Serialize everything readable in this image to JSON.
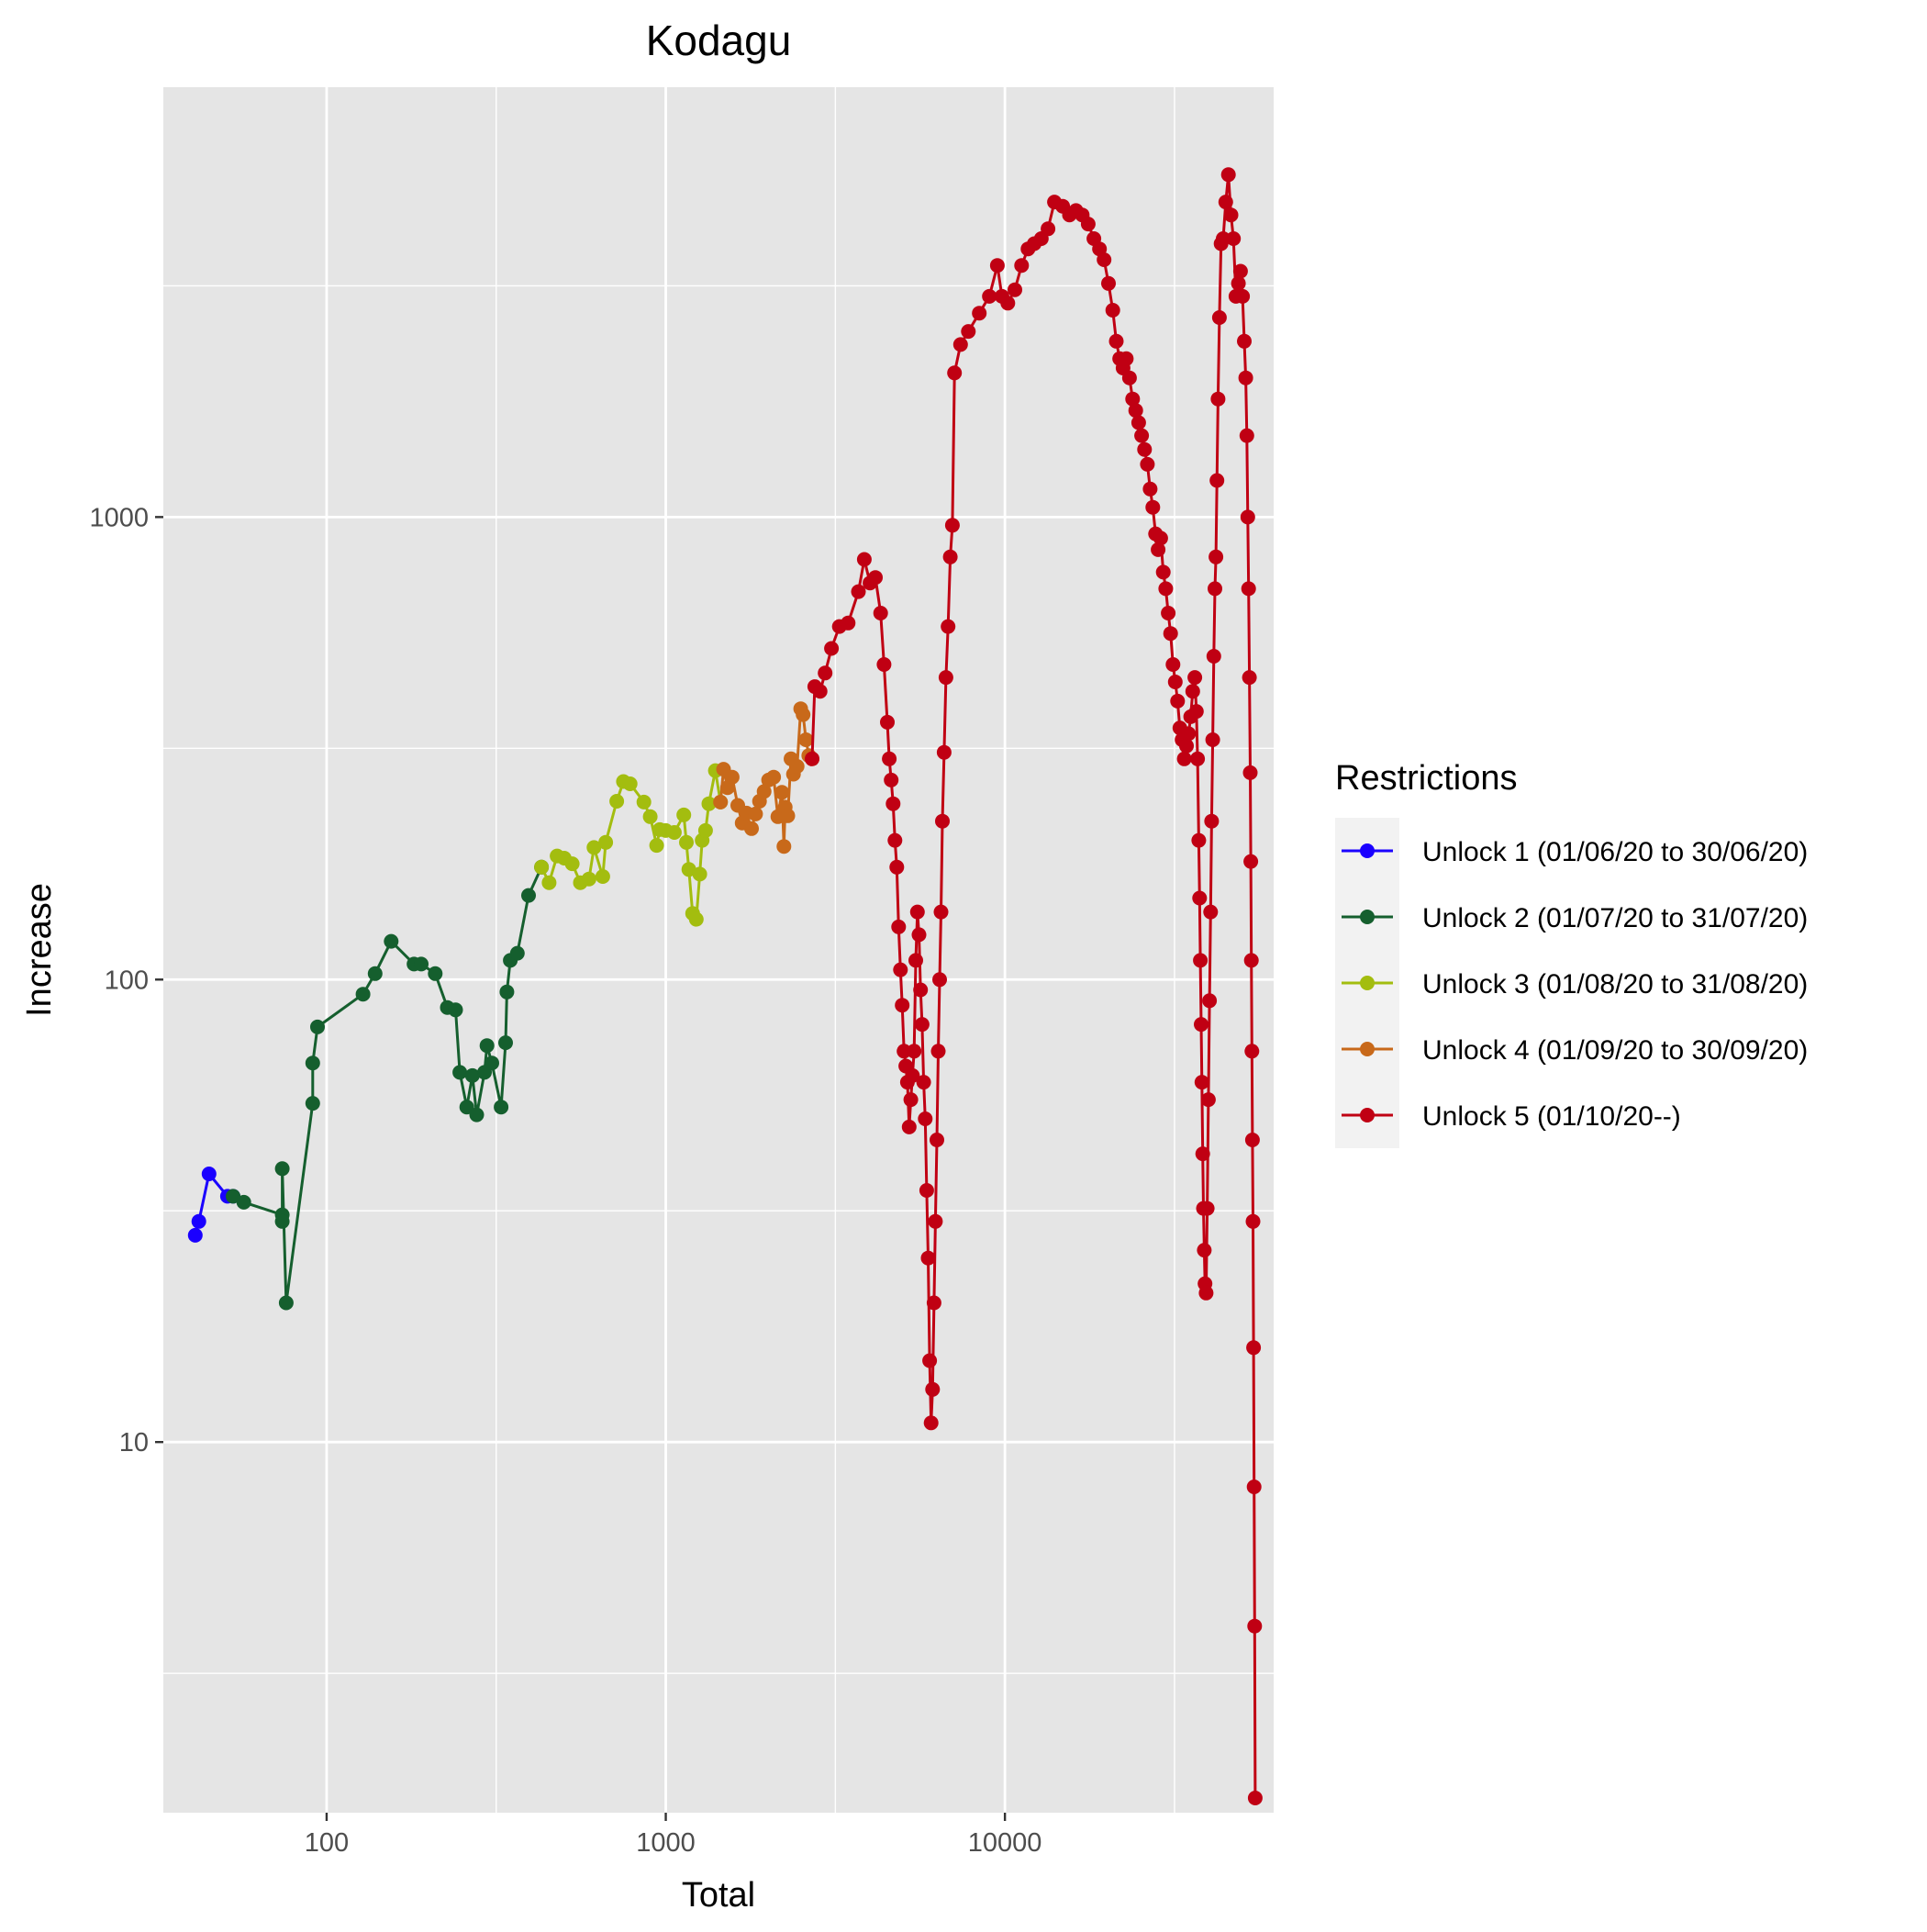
{
  "chart_data": {
    "type": "line",
    "title": "Kodagu",
    "xlabel": "Total",
    "ylabel": "Increase",
    "x_scale": "log10",
    "y_scale": "log10",
    "xlim": [
      33,
      62000
    ],
    "ylim": [
      1.58,
      8500
    ],
    "x_ticks": [
      100,
      1000,
      10000
    ],
    "x_tick_labels": [
      "100",
      "1000",
      "10000"
    ],
    "y_ticks": [
      10,
      100,
      1000
    ],
    "y_tick_labels": [
      "10",
      "100",
      "1000"
    ],
    "grid": true,
    "markers": true,
    "legend": {
      "title": "Restrictions",
      "position": "right"
    },
    "series": [
      {
        "name": "Unlock 1 (01/06/20 to 30/06/20)",
        "color": "#1a00ff",
        "points": [
          [
            41,
            28
          ],
          [
            42,
            30
          ],
          [
            45,
            38
          ],
          [
            51,
            34
          ],
          [
            53,
            34
          ]
        ]
      },
      {
        "name": "Unlock 2 (01/07/20 to 31/07/20)",
        "color": "#155f2e",
        "points": [
          [
            53,
            34
          ],
          [
            57,
            33
          ],
          [
            74,
            31
          ],
          [
            74,
            30
          ],
          [
            74,
            39
          ],
          [
            76,
            20
          ],
          [
            91,
            54
          ],
          [
            91,
            66
          ],
          [
            94,
            79
          ],
          [
            128,
            93
          ],
          [
            139,
            103
          ],
          [
            155,
            121
          ],
          [
            181,
            108
          ],
          [
            190,
            108
          ],
          [
            209,
            103
          ],
          [
            227,
            87
          ],
          [
            240,
            86
          ],
          [
            247,
            63
          ],
          [
            259,
            53
          ],
          [
            269,
            62
          ],
          [
            277,
            51
          ],
          [
            292,
            63
          ],
          [
            297,
            72
          ],
          [
            307,
            66
          ],
          [
            327,
            53
          ],
          [
            337,
            73
          ],
          [
            340,
            94
          ],
          [
            348,
            110
          ],
          [
            365,
            114
          ],
          [
            394,
            152
          ],
          [
            430,
            175
          ]
        ]
      },
      {
        "name": "Unlock 3 (01/08/20 to 31/08/20)",
        "color": "#a3bd0f",
        "points": [
          [
            430,
            175
          ],
          [
            453,
            162
          ],
          [
            478,
            185
          ],
          [
            502,
            183
          ],
          [
            530,
            178
          ],
          [
            560,
            162
          ],
          [
            594,
            165
          ],
          [
            614,
            193
          ],
          [
            652,
            167
          ],
          [
            665,
            198
          ],
          [
            717,
            243
          ],
          [
            750,
            268
          ],
          [
            785,
            265
          ],
          [
            862,
            242
          ],
          [
            900,
            225
          ],
          [
            940,
            195
          ],
          [
            960,
            211
          ],
          [
            1000,
            210
          ],
          [
            1060,
            208
          ],
          [
            1130,
            227
          ],
          [
            1150,
            198
          ],
          [
            1170,
            173
          ],
          [
            1200,
            139
          ],
          [
            1230,
            135
          ],
          [
            1260,
            169
          ],
          [
            1280,
            200
          ],
          [
            1310,
            210
          ],
          [
            1340,
            240
          ],
          [
            1400,
            283
          ],
          [
            1450,
            242
          ]
        ]
      },
      {
        "name": "Unlock 4 (01/09/20 to 30/09/20)",
        "color": "#c8691a",
        "points": [
          [
            1450,
            242
          ],
          [
            1480,
            285
          ],
          [
            1520,
            260
          ],
          [
            1570,
            274
          ],
          [
            1630,
            238
          ],
          [
            1680,
            218
          ],
          [
            1730,
            229
          ],
          [
            1790,
            212
          ],
          [
            1840,
            228
          ],
          [
            1890,
            243
          ],
          [
            1950,
            255
          ],
          [
            2010,
            270
          ],
          [
            2080,
            274
          ],
          [
            2140,
            225
          ],
          [
            2200,
            254
          ],
          [
            2230,
            194
          ],
          [
            2250,
            236
          ],
          [
            2290,
            226
          ],
          [
            2340,
            300
          ],
          [
            2380,
            278
          ],
          [
            2440,
            289
          ],
          [
            2500,
            385
          ],
          [
            2540,
            374
          ],
          [
            2590,
            330
          ],
          [
            2640,
            305
          ],
          [
            2700,
            300
          ]
        ]
      },
      {
        "name": "Unlock 5 (01/10/20--)",
        "color": "#c00013",
        "points": [
          [
            2700,
            300
          ],
          [
            2750,
            430
          ],
          [
            2850,
            420
          ],
          [
            2950,
            460
          ],
          [
            3080,
            520
          ],
          [
            3250,
            580
          ],
          [
            3450,
            590
          ],
          [
            3700,
            690
          ],
          [
            3850,
            810
          ],
          [
            4000,
            720
          ],
          [
            4150,
            740
          ],
          [
            4300,
            620
          ],
          [
            4400,
            480
          ],
          [
            4500,
            360
          ],
          [
            4560,
            300
          ],
          [
            4620,
            270
          ],
          [
            4680,
            240
          ],
          [
            4740,
            200
          ],
          [
            4800,
            175
          ],
          [
            4860,
            130
          ],
          [
            4920,
            105
          ],
          [
            4980,
            88
          ],
          [
            5040,
            70
          ],
          [
            5100,
            65
          ],
          [
            5160,
            60
          ],
          [
            5220,
            48
          ],
          [
            5280,
            55
          ],
          [
            5340,
            62
          ],
          [
            5400,
            70
          ],
          [
            5460,
            110
          ],
          [
            5520,
            140
          ],
          [
            5580,
            125
          ],
          [
            5640,
            95
          ],
          [
            5700,
            80
          ],
          [
            5760,
            60
          ],
          [
            5820,
            50
          ],
          [
            5880,
            35
          ],
          [
            5940,
            25
          ],
          [
            6000,
            15
          ],
          [
            6060,
            11
          ],
          [
            6120,
            13
          ],
          [
            6180,
            20
          ],
          [
            6240,
            30
          ],
          [
            6300,
            45
          ],
          [
            6360,
            70
          ],
          [
            6420,
            100
          ],
          [
            6480,
            140
          ],
          [
            6540,
            220
          ],
          [
            6620,
            310
          ],
          [
            6700,
            450
          ],
          [
            6800,
            580
          ],
          [
            6900,
            820
          ],
          [
            7000,
            960
          ],
          [
            7100,
            2050
          ],
          [
            7400,
            2360
          ],
          [
            7800,
            2520
          ],
          [
            8400,
            2760
          ],
          [
            9000,
            3000
          ],
          [
            9500,
            3500
          ],
          [
            9800,
            3000
          ],
          [
            10200,
            2900
          ],
          [
            10700,
            3100
          ],
          [
            11200,
            3500
          ],
          [
            11700,
            3800
          ],
          [
            12200,
            3900
          ],
          [
            12800,
            4000
          ],
          [
            13400,
            4200
          ],
          [
            14000,
            4800
          ],
          [
            14800,
            4700
          ],
          [
            15500,
            4500
          ],
          [
            16200,
            4600
          ],
          [
            16900,
            4500
          ],
          [
            17600,
            4300
          ],
          [
            18300,
            4000
          ],
          [
            19000,
            3800
          ],
          [
            19600,
            3600
          ],
          [
            20200,
            3200
          ],
          [
            20800,
            2800
          ],
          [
            21300,
            2400
          ],
          [
            21800,
            2200
          ],
          [
            22300,
            2100
          ],
          [
            22800,
            2200
          ],
          [
            23300,
            2000
          ],
          [
            23800,
            1800
          ],
          [
            24300,
            1700
          ],
          [
            24800,
            1600
          ],
          [
            25300,
            1500
          ],
          [
            25800,
            1400
          ],
          [
            26300,
            1300
          ],
          [
            26800,
            1150
          ],
          [
            27300,
            1050
          ],
          [
            27800,
            920
          ],
          [
            28300,
            850
          ],
          [
            28800,
            900
          ],
          [
            29300,
            760
          ],
          [
            29800,
            700
          ],
          [
            30300,
            620
          ],
          [
            30800,
            560
          ],
          [
            31300,
            480
          ],
          [
            31800,
            440
          ],
          [
            32300,
            400
          ],
          [
            32800,
            350
          ],
          [
            33300,
            330
          ],
          [
            33800,
            300
          ],
          [
            34300,
            320
          ],
          [
            34800,
            340
          ],
          [
            35300,
            370
          ],
          [
            35800,
            420
          ],
          [
            36300,
            450
          ],
          [
            36700,
            380
          ],
          [
            37000,
            300
          ],
          [
            37300,
            200
          ],
          [
            37500,
            150
          ],
          [
            37700,
            110
          ],
          [
            37900,
            80
          ],
          [
            38100,
            60
          ],
          [
            38300,
            42
          ],
          [
            38500,
            32
          ],
          [
            38700,
            26
          ],
          [
            38900,
            22
          ],
          [
            39200,
            21
          ],
          [
            39500,
            32
          ],
          [
            39800,
            55
          ],
          [
            40100,
            90
          ],
          [
            40400,
            140
          ],
          [
            40700,
            220
          ],
          [
            41000,
            330
          ],
          [
            41300,
            500
          ],
          [
            41600,
            700
          ],
          [
            41900,
            820
          ],
          [
            42200,
            1200
          ],
          [
            42500,
            1800
          ],
          [
            42900,
            2700
          ],
          [
            43400,
            3900
          ],
          [
            44000,
            4000
          ],
          [
            44800,
            4800
          ],
          [
            45600,
            5500
          ],
          [
            46400,
            4500
          ],
          [
            47200,
            4000
          ],
          [
            48000,
            3000
          ],
          [
            48800,
            3200
          ],
          [
            49500,
            3400
          ],
          [
            50200,
            3000
          ],
          [
            50800,
            2400
          ],
          [
            51300,
            2000
          ],
          [
            51700,
            1500
          ],
          [
            52000,
            1000
          ],
          [
            52300,
            700
          ],
          [
            52600,
            450
          ],
          [
            52900,
            280
          ],
          [
            53100,
            180
          ],
          [
            53300,
            110
          ],
          [
            53500,
            70
          ],
          [
            53700,
            45
          ],
          [
            53900,
            30
          ],
          [
            54100,
            16
          ],
          [
            54300,
            8
          ],
          [
            54500,
            4
          ],
          [
            54700,
            1.7
          ]
        ]
      }
    ]
  }
}
